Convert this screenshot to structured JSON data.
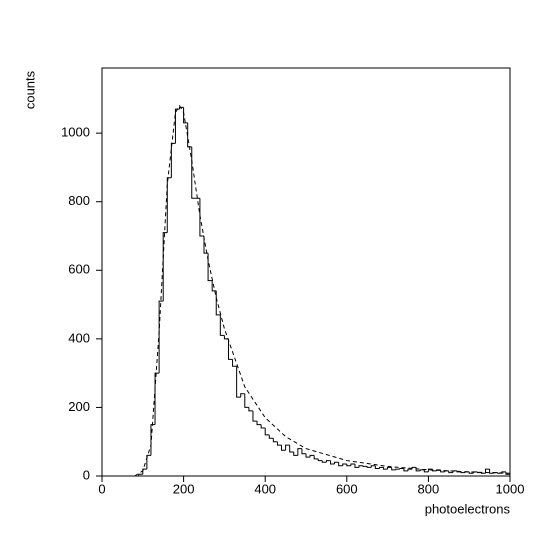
{
  "chart_data": {
    "type": "histogram",
    "xlabel": "photoelectrons",
    "ylabel": "counts",
    "color": "#000000",
    "bins": [
      0,
      10,
      20,
      30,
      40,
      50,
      60,
      70,
      80,
      90,
      100,
      110,
      120,
      130,
      140,
      150,
      160,
      170,
      180,
      190,
      200,
      210,
      220,
      230,
      240,
      250,
      260,
      270,
      280,
      290,
      300,
      310,
      320,
      330,
      340,
      350,
      360,
      370,
      380,
      390,
      400,
      410,
      420,
      430,
      440,
      450,
      460,
      470,
      480,
      490,
      500,
      510,
      520,
      530,
      540,
      550,
      560,
      570,
      580,
      590,
      600,
      610,
      620,
      630,
      640,
      650,
      660,
      670,
      680,
      690,
      700,
      710,
      720,
      730,
      740,
      750,
      760,
      770,
      780,
      790,
      800,
      810,
      820,
      830,
      840,
      850,
      860,
      870,
      880,
      890,
      900,
      910,
      920,
      930,
      940,
      950,
      960,
      970,
      980,
      990,
      1000
    ],
    "counts": [
      0,
      0,
      0,
      0,
      0,
      0,
      0,
      0,
      0,
      5,
      20,
      60,
      150,
      300,
      510,
      710,
      870,
      970,
      1070,
      1075,
      1030,
      960,
      810,
      810,
      700,
      650,
      570,
      540,
      470,
      410,
      400,
      340,
      320,
      230,
      240,
      200,
      190,
      160,
      150,
      140,
      120,
      110,
      100,
      90,
      75,
      90,
      70,
      60,
      80,
      65,
      55,
      60,
      50,
      45,
      40,
      45,
      35,
      40,
      30,
      35,
      30,
      35,
      25,
      30,
      28,
      25,
      30,
      22,
      25,
      20,
      25,
      18,
      20,
      22,
      15,
      20,
      25,
      15,
      18,
      12,
      20,
      15,
      18,
      12,
      15,
      10,
      15,
      12,
      10,
      12,
      8,
      12,
      10,
      8,
      20,
      8,
      10,
      8,
      12,
      5
    ],
    "fit": {
      "x": [
        80,
        100,
        120,
        140,
        160,
        180,
        190,
        200,
        220,
        240,
        260,
        280,
        300,
        350,
        400,
        450,
        500,
        600,
        700,
        800,
        900,
        1000
      ],
      "values": [
        0,
        15,
        90,
        420,
        850,
        1060,
        1080,
        1060,
        920,
        760,
        630,
        520,
        430,
        260,
        170,
        115,
        80,
        45,
        28,
        18,
        12,
        8
      ]
    },
    "xlim": [
      0,
      1000
    ],
    "ylim": [
      0,
      1190
    ],
    "xticks": [
      0,
      200,
      400,
      600,
      800,
      1000
    ],
    "yticks": [
      0,
      200,
      400,
      600,
      800,
      1000
    ]
  }
}
